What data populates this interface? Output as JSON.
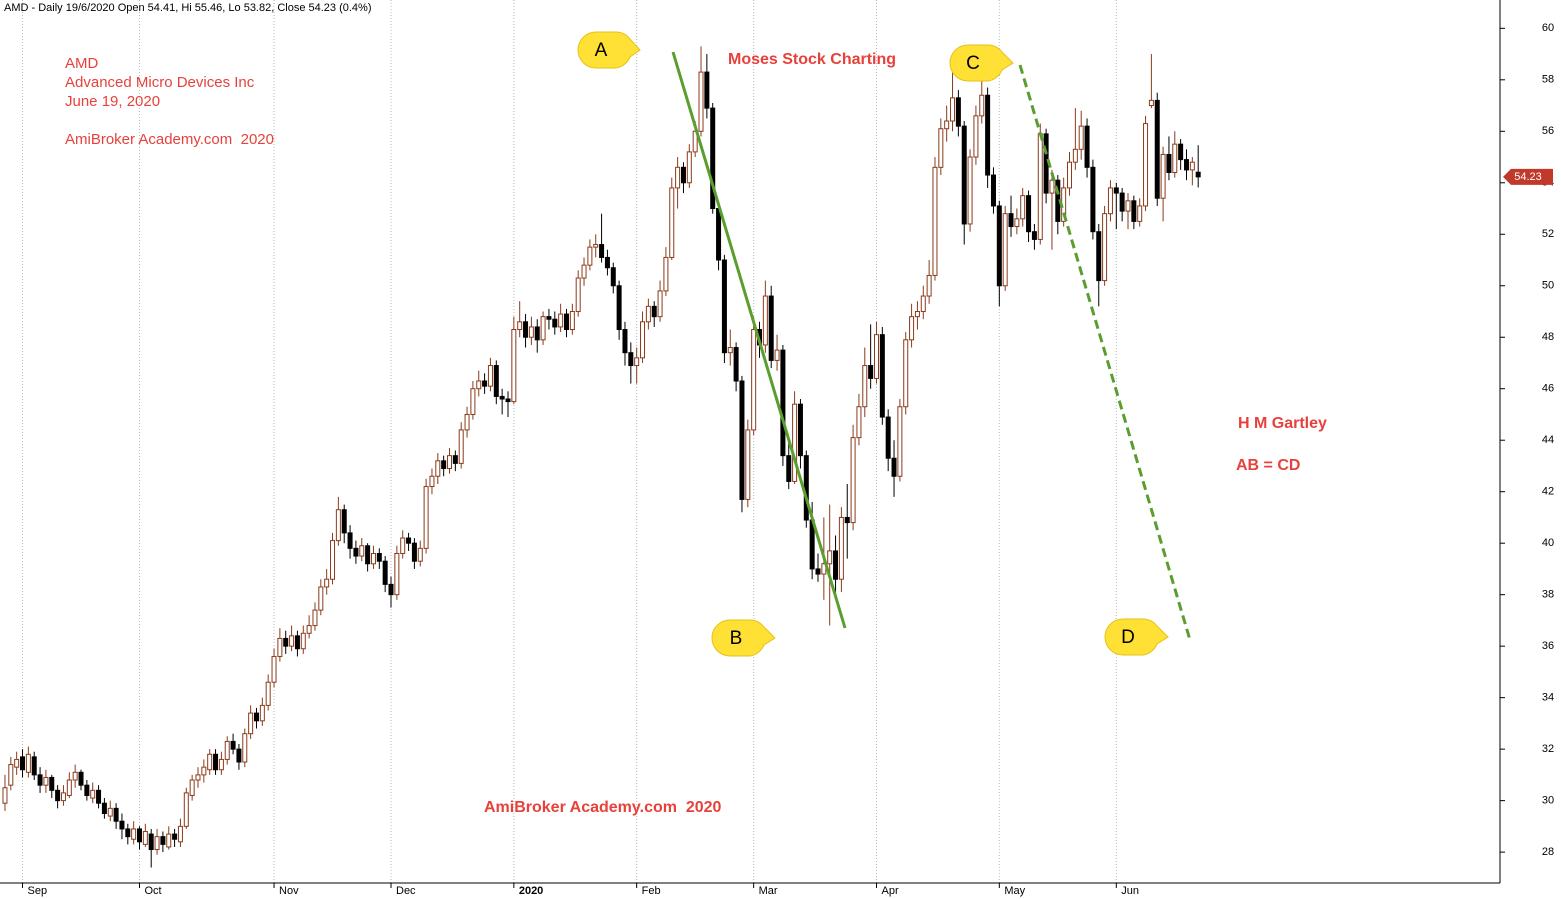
{
  "chart_data": {
    "type": "candlestick",
    "title": "AMD - Daily 19/6/2020 Open 54.41, Hi 55.46, Lo 53.82, Close 54.23 (0.4%)",
    "up_color": "#8b3a1a",
    "down_color": "#000000",
    "xlim": [
      -0.85,
      255.6
    ],
    "xticks": [
      {
        "value": 3,
        "label": "Sep"
      },
      {
        "value": 23,
        "label": "Oct"
      },
      {
        "value": 46,
        "label": "Nov"
      },
      {
        "value": 66,
        "label": "Dec"
      },
      {
        "value": 87,
        "label": "2020"
      },
      {
        "value": 108,
        "label": "Feb"
      },
      {
        "value": 128,
        "label": "Mar"
      },
      {
        "value": 149,
        "label": "Apr"
      },
      {
        "value": 170,
        "label": "May"
      },
      {
        "value": 190,
        "label": "Jun"
      }
    ],
    "ylim": [
      26.8,
      61.1
    ],
    "yticks": [
      28,
      30,
      32,
      34,
      36,
      38,
      40,
      42,
      44,
      46,
      48,
      50,
      52,
      54,
      56,
      58,
      60
    ],
    "grid": true,
    "annotations": [
      "AMD",
      "Advanced Micro Devices Inc",
      "June 19, 2020",
      "AmiBroker Academy.com  2020",
      "Moses Stock Charting",
      "AmiBroker Academy.com  2020",
      "H M Gartley",
      "AB = CD"
    ],
    "points": [
      "A",
      "B",
      "C",
      "D"
    ],
    "ohlc": [
      [
        29.9,
        31.0,
        29.6,
        30.5
      ],
      [
        30.6,
        31.7,
        30.4,
        31.4
      ],
      [
        31.3,
        31.9,
        31.0,
        31.6
      ],
      [
        31.7,
        32.0,
        30.9,
        31.2
      ],
      [
        31.1,
        32.1,
        30.9,
        31.8
      ],
      [
        31.7,
        31.9,
        30.8,
        31.0
      ],
      [
        31.0,
        31.3,
        30.3,
        30.6
      ],
      [
        30.6,
        31.2,
        30.3,
        30.9
      ],
      [
        30.9,
        31.0,
        30.1,
        30.4
      ],
      [
        30.4,
        30.6,
        29.7,
        30.0
      ],
      [
        30.0,
        30.6,
        29.8,
        30.3
      ],
      [
        30.2,
        31.1,
        30.1,
        30.8
      ],
      [
        30.8,
        31.4,
        30.5,
        31.1
      ],
      [
        31.1,
        31.2,
        30.4,
        30.6
      ],
      [
        30.6,
        30.8,
        30.0,
        30.2
      ],
      [
        30.1,
        30.7,
        29.9,
        30.4
      ],
      [
        30.4,
        30.6,
        29.7,
        29.9
      ],
      [
        29.9,
        30.1,
        29.3,
        29.5
      ],
      [
        29.4,
        30.0,
        29.2,
        29.7
      ],
      [
        29.7,
        29.9,
        28.9,
        29.2
      ],
      [
        29.2,
        29.5,
        28.5,
        28.9
      ],
      [
        28.9,
        29.1,
        28.3,
        28.6
      ],
      [
        28.5,
        29.2,
        28.3,
        28.9
      ],
      [
        28.9,
        29.0,
        28.1,
        28.4
      ],
      [
        28.3,
        29.1,
        28.2,
        28.8
      ],
      [
        28.7,
        28.9,
        27.4,
        28.1
      ],
      [
        28.1,
        28.9,
        27.9,
        28.6
      ],
      [
        28.6,
        28.8,
        28.0,
        28.3
      ],
      [
        28.2,
        29.0,
        28.1,
        28.7
      ],
      [
        28.7,
        28.9,
        28.2,
        28.5
      ],
      [
        28.4,
        29.3,
        28.2,
        29.0
      ],
      [
        29.0,
        30.5,
        28.9,
        30.3
      ],
      [
        30.2,
        31.0,
        30.0,
        30.8
      ],
      [
        30.8,
        31.3,
        30.5,
        31.0
      ],
      [
        31.0,
        31.6,
        30.7,
        31.3
      ],
      [
        31.2,
        32.0,
        31.0,
        31.8
      ],
      [
        31.8,
        32.0,
        31.0,
        31.2
      ],
      [
        31.2,
        31.9,
        31.0,
        31.6
      ],
      [
        31.6,
        32.5,
        31.4,
        32.3
      ],
      [
        32.3,
        32.6,
        31.8,
        32.0
      ],
      [
        32.0,
        32.2,
        31.2,
        31.5
      ],
      [
        31.5,
        32.8,
        31.3,
        32.6
      ],
      [
        32.6,
        33.7,
        32.4,
        33.4
      ],
      [
        33.4,
        33.6,
        32.8,
        33.1
      ],
      [
        33.1,
        34.0,
        32.9,
        33.7
      ],
      [
        33.7,
        34.9,
        33.5,
        34.6
      ],
      [
        34.6,
        35.9,
        34.4,
        35.6
      ],
      [
        35.6,
        36.7,
        35.4,
        36.3
      ],
      [
        36.3,
        36.6,
        35.7,
        36.0
      ],
      [
        36.0,
        36.8,
        35.8,
        36.4
      ],
      [
        36.4,
        36.6,
        35.6,
        35.9
      ],
      [
        35.9,
        36.8,
        35.7,
        36.5
      ],
      [
        36.5,
        37.2,
        36.3,
        36.8
      ],
      [
        36.8,
        37.7,
        36.6,
        37.4
      ],
      [
        37.4,
        38.6,
        37.2,
        38.3
      ],
      [
        38.3,
        39.0,
        38.0,
        38.6
      ],
      [
        38.6,
        40.4,
        38.4,
        40.1
      ],
      [
        40.1,
        41.8,
        39.9,
        41.3
      ],
      [
        41.3,
        41.5,
        40.0,
        40.4
      ],
      [
        40.4,
        40.7,
        39.4,
        39.8
      ],
      [
        39.8,
        40.1,
        39.2,
        39.5
      ],
      [
        39.5,
        40.2,
        39.3,
        39.9
      ],
      [
        39.9,
        40.0,
        38.9,
        39.2
      ],
      [
        39.2,
        39.9,
        39.0,
        39.6
      ],
      [
        39.6,
        39.8,
        39.0,
        39.3
      ],
      [
        39.3,
        39.5,
        38.1,
        38.4
      ],
      [
        38.4,
        38.7,
        37.5,
        38.0
      ],
      [
        38.0,
        39.9,
        37.8,
        39.6
      ],
      [
        39.6,
        40.5,
        39.4,
        40.2
      ],
      [
        40.2,
        40.4,
        39.7,
        40.0
      ],
      [
        40.0,
        40.2,
        39.0,
        39.3
      ],
      [
        39.3,
        40.1,
        39.1,
        39.8
      ],
      [
        39.8,
        42.5,
        39.6,
        42.2
      ],
      [
        42.2,
        42.9,
        41.9,
        42.6
      ],
      [
        42.6,
        43.5,
        42.3,
        43.2
      ],
      [
        43.2,
        43.4,
        42.6,
        42.9
      ],
      [
        42.9,
        43.7,
        42.7,
        43.4
      ],
      [
        43.4,
        43.6,
        42.8,
        43.1
      ],
      [
        43.1,
        44.7,
        42.9,
        44.4
      ],
      [
        44.4,
        45.3,
        44.1,
        45.0
      ],
      [
        45.0,
        46.3,
        44.8,
        46.0
      ],
      [
        46.0,
        46.7,
        45.7,
        46.3
      ],
      [
        46.3,
        46.6,
        45.8,
        46.1
      ],
      [
        46.1,
        47.2,
        45.9,
        46.9
      ],
      [
        46.9,
        47.1,
        45.4,
        45.7
      ],
      [
        45.7,
        46.0,
        45.0,
        45.6
      ],
      [
        45.6,
        45.9,
        44.9,
        45.5
      ],
      [
        45.5,
        48.8,
        45.4,
        48.3
      ],
      [
        48.3,
        49.4,
        48.0,
        48.6
      ],
      [
        48.6,
        48.9,
        47.6,
        48.0
      ],
      [
        48.0,
        48.8,
        47.7,
        48.4
      ],
      [
        48.4,
        48.7,
        47.4,
        47.9
      ],
      [
        47.9,
        49.0,
        47.7,
        48.8
      ],
      [
        48.8,
        49.1,
        48.3,
        48.7
      ],
      [
        48.7,
        49.0,
        48.1,
        48.4
      ],
      [
        48.4,
        49.3,
        48.2,
        48.9
      ],
      [
        48.9,
        49.1,
        48.0,
        48.3
      ],
      [
        48.3,
        49.3,
        48.1,
        49.0
      ],
      [
        49.0,
        50.6,
        48.8,
        50.3
      ],
      [
        50.3,
        51.1,
        50.0,
        50.8
      ],
      [
        50.8,
        51.8,
        50.6,
        51.5
      ],
      [
        51.5,
        52.0,
        51.1,
        51.6
      ],
      [
        51.6,
        52.8,
        50.9,
        51.1
      ],
      [
        51.1,
        51.4,
        50.4,
        50.7
      ],
      [
        50.7,
        50.9,
        49.7,
        50.0
      ],
      [
        50.0,
        50.2,
        47.9,
        48.3
      ],
      [
        48.3,
        48.6,
        46.9,
        47.4
      ],
      [
        47.4,
        47.8,
        46.2,
        46.9
      ],
      [
        46.9,
        47.6,
        46.2,
        47.2
      ],
      [
        47.2,
        49.0,
        47.0,
        48.6
      ],
      [
        48.6,
        49.5,
        48.3,
        49.2
      ],
      [
        49.2,
        49.4,
        48.4,
        48.8
      ],
      [
        48.8,
        50.2,
        48.6,
        49.8
      ],
      [
        49.8,
        51.5,
        49.6,
        51.1
      ],
      [
        51.1,
        54.2,
        51.0,
        53.8
      ],
      [
        53.8,
        55.0,
        53.0,
        54.6
      ],
      [
        54.6,
        54.8,
        53.6,
        54.0
      ],
      [
        54.0,
        55.5,
        53.8,
        55.2
      ],
      [
        55.2,
        56.4,
        55.0,
        56.0
      ],
      [
        56.0,
        59.3,
        55.8,
        58.3
      ],
      [
        58.3,
        59.0,
        56.5,
        56.9
      ],
      [
        56.9,
        57.1,
        52.8,
        53.0
      ],
      [
        53.0,
        53.3,
        50.6,
        51.0
      ],
      [
        51.0,
        51.2,
        47.0,
        47.4
      ],
      [
        47.4,
        48.3,
        46.9,
        47.6
      ],
      [
        47.6,
        47.8,
        45.9,
        46.3
      ],
      [
        46.3,
        46.5,
        41.2,
        41.7
      ],
      [
        41.7,
        44.8,
        41.4,
        44.4
      ],
      [
        44.4,
        48.8,
        44.2,
        48.3
      ],
      [
        48.3,
        48.6,
        47.2,
        47.7
      ],
      [
        47.7,
        50.2,
        47.4,
        49.6
      ],
      [
        49.6,
        50.0,
        46.8,
        47.1
      ],
      [
        47.1,
        48.1,
        46.7,
        47.5
      ],
      [
        47.5,
        47.7,
        43.0,
        43.4
      ],
      [
        43.4,
        44.0,
        42.1,
        42.4
      ],
      [
        42.4,
        45.9,
        42.3,
        45.4
      ],
      [
        45.4,
        45.6,
        42.9,
        43.4
      ],
      [
        43.4,
        43.6,
        40.6,
        40.9
      ],
      [
        40.9,
        41.6,
        38.6,
        39.0
      ],
      [
        39.0,
        39.6,
        38.5,
        38.8
      ],
      [
        38.8,
        41.0,
        37.8,
        39.2
      ],
      [
        39.2,
        41.5,
        36.8,
        39.7
      ],
      [
        39.7,
        40.3,
        37.8,
        38.6
      ],
      [
        38.6,
        41.4,
        38.1,
        41.0
      ],
      [
        41.0,
        42.3,
        39.4,
        40.8
      ],
      [
        40.8,
        44.6,
        40.5,
        44.1
      ],
      [
        44.1,
        45.8,
        43.8,
        45.3
      ],
      [
        45.3,
        47.6,
        44.9,
        46.9
      ],
      [
        46.9,
        48.5,
        46.0,
        46.4
      ],
      [
        46.4,
        48.6,
        46.2,
        48.1
      ],
      [
        48.1,
        48.4,
        44.6,
        44.9
      ],
      [
        44.9,
        45.2,
        42.8,
        43.3
      ],
      [
        43.3,
        44.0,
        41.8,
        42.6
      ],
      [
        42.6,
        45.6,
        42.4,
        45.3
      ],
      [
        45.3,
        48.2,
        45.0,
        47.9
      ],
      [
        47.9,
        49.3,
        47.6,
        48.8
      ],
      [
        48.8,
        49.4,
        48.3,
        49.0
      ],
      [
        49.0,
        50.0,
        48.7,
        49.6
      ],
      [
        49.6,
        51.0,
        49.3,
        50.4
      ],
      [
        50.4,
        55.0,
        50.2,
        54.6
      ],
      [
        54.6,
        56.5,
        54.3,
        56.1
      ],
      [
        56.1,
        57.0,
        55.6,
        56.4
      ],
      [
        56.4,
        58.5,
        56.0,
        57.3
      ],
      [
        57.3,
        57.6,
        55.8,
        56.2
      ],
      [
        56.2,
        56.4,
        51.6,
        52.4
      ],
      [
        52.4,
        55.3,
        52.1,
        55.0
      ],
      [
        55.0,
        57.0,
        54.7,
        56.6
      ],
      [
        56.6,
        58.0,
        56.3,
        57.4
      ],
      [
        57.4,
        57.7,
        53.8,
        54.3
      ],
      [
        54.3,
        54.6,
        52.8,
        53.1
      ],
      [
        53.1,
        53.3,
        49.2,
        50.0
      ],
      [
        50.0,
        53.1,
        49.8,
        52.8
      ],
      [
        52.8,
        53.5,
        51.9,
        52.3
      ],
      [
        52.3,
        53.0,
        52.0,
        52.6
      ],
      [
        52.6,
        53.8,
        52.3,
        53.5
      ],
      [
        53.5,
        53.7,
        51.7,
        52.1
      ],
      [
        52.1,
        52.4,
        51.4,
        51.8
      ],
      [
        51.8,
        56.3,
        51.6,
        55.9
      ],
      [
        55.9,
        56.1,
        53.2,
        53.6
      ],
      [
        53.6,
        54.5,
        51.4,
        54.1
      ],
      [
        54.1,
        54.3,
        52.0,
        52.5
      ],
      [
        52.5,
        54.2,
        52.3,
        53.8
      ],
      [
        53.8,
        55.2,
        53.5,
        54.8
      ],
      [
        54.8,
        56.9,
        54.5,
        55.3
      ],
      [
        55.3,
        56.8,
        54.9,
        56.2
      ],
      [
        56.2,
        56.5,
        54.2,
        54.6
      ],
      [
        54.6,
        54.9,
        51.8,
        52.1
      ],
      [
        52.1,
        52.4,
        49.2,
        50.2
      ],
      [
        50.2,
        53.1,
        50.0,
        52.8
      ],
      [
        52.8,
        54.1,
        52.5,
        53.8
      ],
      [
        53.8,
        54.0,
        52.2,
        53.6
      ],
      [
        53.6,
        53.8,
        52.5,
        52.9
      ],
      [
        52.9,
        53.6,
        52.2,
        53.3
      ],
      [
        53.3,
        53.5,
        52.2,
        52.5
      ],
      [
        52.5,
        53.4,
        52.3,
        53.1
      ],
      [
        53.1,
        56.6,
        52.9,
        56.3
      ],
      [
        57.0,
        59.0,
        56.9,
        57.2
      ],
      [
        57.2,
        57.5,
        53.1,
        53.4
      ],
      [
        53.4,
        55.4,
        52.5,
        55.1
      ],
      [
        55.1,
        55.8,
        54.1,
        54.4
      ],
      [
        54.4,
        56.0,
        54.2,
        55.5
      ],
      [
        55.5,
        55.7,
        54.5,
        54.9
      ],
      [
        54.9,
        55.3,
        54.1,
        54.5
      ],
      [
        54.5,
        55.0,
        53.9,
        54.8
      ],
      [
        54.41,
        55.46,
        53.82,
        54.23
      ]
    ]
  }
}
